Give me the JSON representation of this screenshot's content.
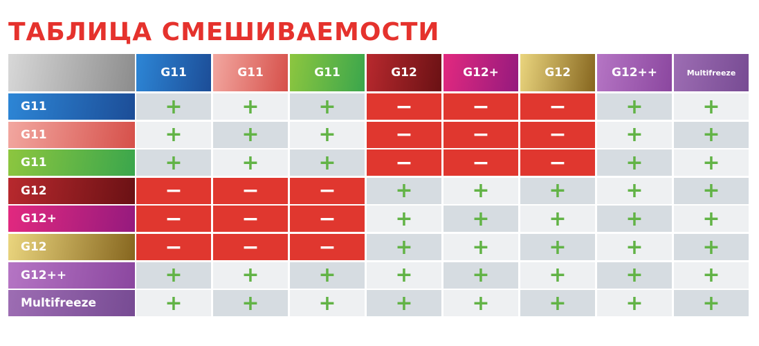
{
  "title": "ТАБЛИЦА СМЕШИВАЕМОСТИ",
  "table": {
    "corner_color": [
      "#d8d8d8",
      "#8c8c8c"
    ],
    "symbol_color": "#62b346",
    "symbol_color_on_fill": "#ffffff",
    "light_fill": "#eef0f2",
    "dark_fill": "#d6dce1",
    "columns": [
      {
        "label": "G11",
        "color": [
          "#2d86d6",
          "#1c4d97"
        ]
      },
      {
        "label": "G11",
        "color": [
          "#f2a7a0",
          "#d6504a"
        ]
      },
      {
        "label": "G11",
        "color": [
          "#8dc63f",
          "#3aa64c"
        ]
      },
      {
        "label": "G12",
        "color": [
          "#b8292e",
          "#6a1114"
        ]
      },
      {
        "label": "G12+",
        "color": [
          "#e2297f",
          "#951a7e"
        ]
      },
      {
        "label": "G12",
        "color": [
          "#ead57e",
          "#86661f"
        ]
      },
      {
        "label": "G12++",
        "color": [
          "#b575c4",
          "#8b479f"
        ]
      },
      {
        "label": "Multifreeze",
        "color": [
          "#9d6db3",
          "#774b93"
        ]
      }
    ],
    "rows": [
      {
        "label": "G11",
        "color": [
          "#2d86d6",
          "#1c4d97"
        ],
        "cells": [
          {
            "text": "+"
          },
          {
            "text": "+"
          },
          {
            "text": "+"
          },
          {
            "text": "−",
            "fill": "#e0372f"
          },
          {
            "text": "−",
            "fill": "#e0372f"
          },
          {
            "text": "−",
            "fill": "#e0372f"
          },
          {
            "text": "+"
          },
          {
            "text": "+"
          }
        ]
      },
      {
        "label": "G11",
        "color": [
          "#f2a7a0",
          "#d6504a"
        ],
        "cells": [
          {
            "text": "+"
          },
          {
            "text": "+"
          },
          {
            "text": "+"
          },
          {
            "text": "−",
            "fill": "#e0372f"
          },
          {
            "text": "−",
            "fill": "#e0372f"
          },
          {
            "text": "−",
            "fill": "#e0372f"
          },
          {
            "text": "+"
          },
          {
            "text": "+"
          }
        ]
      },
      {
        "label": "G11",
        "color": [
          "#8dc63f",
          "#3aa64c"
        ],
        "cells": [
          {
            "text": "+"
          },
          {
            "text": "+"
          },
          {
            "text": "+"
          },
          {
            "text": "−",
            "fill": "#e0372f"
          },
          {
            "text": "−",
            "fill": "#e0372f"
          },
          {
            "text": "−",
            "fill": "#e0372f"
          },
          {
            "text": "+"
          },
          {
            "text": "+"
          }
        ]
      },
      {
        "label": "G12",
        "color": [
          "#b8292e",
          "#6a1114"
        ],
        "cells": [
          {
            "text": "−",
            "fill": "#e0372f"
          },
          {
            "text": "−",
            "fill": "#e0372f"
          },
          {
            "text": "−",
            "fill": "#e0372f"
          },
          {
            "text": "+"
          },
          {
            "text": "+"
          },
          {
            "text": "+"
          },
          {
            "text": "+"
          },
          {
            "text": "+"
          }
        ]
      },
      {
        "label": "G12+",
        "color": [
          "#e2297f",
          "#951a7e"
        ],
        "cells": [
          {
            "text": "−",
            "fill": "#e0372f"
          },
          {
            "text": "−",
            "fill": "#e0372f"
          },
          {
            "text": "−",
            "fill": "#e0372f"
          },
          {
            "text": "+"
          },
          {
            "text": "+"
          },
          {
            "text": "+"
          },
          {
            "text": "+"
          },
          {
            "text": "+"
          }
        ]
      },
      {
        "label": "G12",
        "color": [
          "#ead57e",
          "#86661f"
        ],
        "cells": [
          {
            "text": "−",
            "fill": "#e0372f"
          },
          {
            "text": "−",
            "fill": "#e0372f"
          },
          {
            "text": "−",
            "fill": "#e0372f"
          },
          {
            "text": "+"
          },
          {
            "text": "+"
          },
          {
            "text": "+"
          },
          {
            "text": "+"
          },
          {
            "text": "+"
          }
        ]
      },
      {
        "label": "G12++",
        "color": [
          "#b575c4",
          "#8b479f"
        ],
        "cells": [
          {
            "text": "+"
          },
          {
            "text": "+"
          },
          {
            "text": "+"
          },
          {
            "text": "+"
          },
          {
            "text": "+"
          },
          {
            "text": "+"
          },
          {
            "text": "+"
          },
          {
            "text": "+"
          }
        ]
      },
      {
        "label": "Multifreeze",
        "color": [
          "#9d6db3",
          "#774b93"
        ],
        "cells": [
          {
            "text": "+"
          },
          {
            "text": "+"
          },
          {
            "text": "+"
          },
          {
            "text": "+"
          },
          {
            "text": "+"
          },
          {
            "text": "+"
          },
          {
            "text": "+"
          },
          {
            "text": "+"
          }
        ]
      }
    ]
  }
}
